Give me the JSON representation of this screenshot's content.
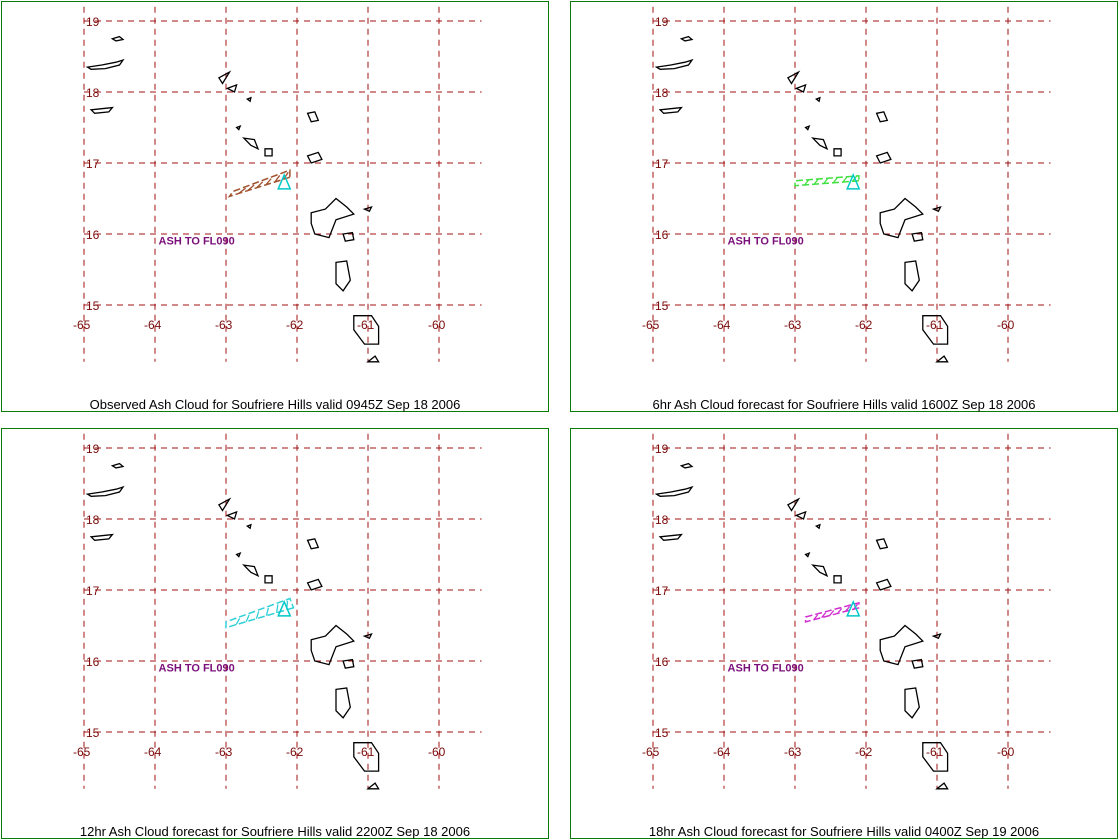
{
  "map": {
    "lon_range": [
      -65,
      -59.4
    ],
    "lat_range": [
      14.2,
      19.2
    ],
    "lon_ticks": [
      -65,
      -64,
      -63,
      -62,
      -61,
      -60
    ],
    "lat_ticks": [
      19,
      18,
      17,
      16,
      15
    ],
    "grid_color": "#a01010",
    "coast_color": "#000000",
    "volcano_color": "#00c8c8"
  },
  "panels": [
    {
      "caption": "Observed Ash Cloud for Soufriere  Hills valid 0945Z Sep 18 2006",
      "ash_label": "ASH TO FL090",
      "cloud_color": "#a0522d",
      "cloud": [
        [
          -62.1,
          16.8
        ],
        [
          -62.95,
          16.53
        ],
        [
          -62.9,
          16.6
        ],
        [
          -62.1,
          16.9
        ]
      ]
    },
    {
      "caption": "6hr Ash Cloud forecast for Soufriere  Hills valid 1600Z Sep 18 2006",
      "ash_label": "ASH TO FL090",
      "cloud_color": "#40e040",
      "cloud": [
        [
          -62.1,
          16.75
        ],
        [
          -63.0,
          16.68
        ],
        [
          -63.0,
          16.75
        ],
        [
          -62.1,
          16.82
        ]
      ]
    },
    {
      "caption": "12hr Ash Cloud forecast for Soufriere  Hills valid 2200Z Sep 18 2006",
      "ash_label": "ASH TO FL090",
      "cloud_color": "#30d0d8",
      "cloud": [
        [
          -62.05,
          16.75
        ],
        [
          -63.0,
          16.47
        ],
        [
          -63.0,
          16.55
        ],
        [
          -62.1,
          16.88
        ]
      ]
    },
    {
      "caption": "18hr Ash Cloud forecast for Soufriere  Hills valid 0400Z Sep 19 2006",
      "ash_label": "ASH TO FL090",
      "cloud_color": "#d030d0",
      "cloud": [
        [
          -62.1,
          16.75
        ],
        [
          -62.85,
          16.55
        ],
        [
          -62.85,
          16.62
        ],
        [
          -62.1,
          16.82
        ]
      ]
    }
  ]
}
